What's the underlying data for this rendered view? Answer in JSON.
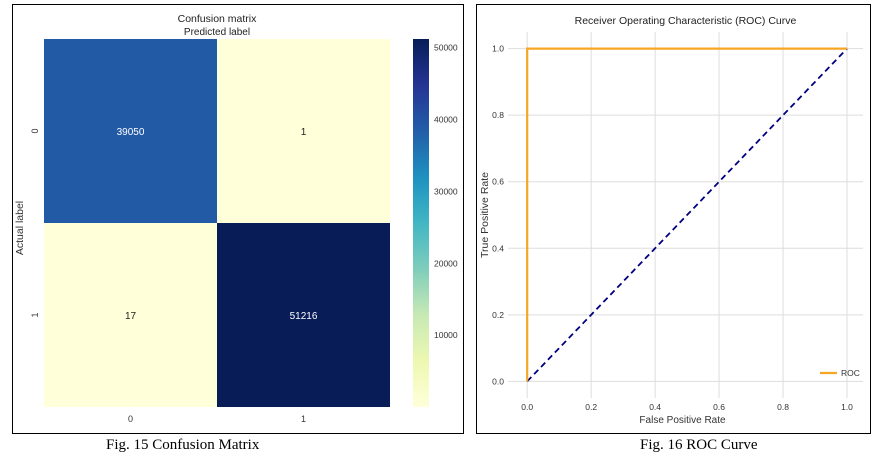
{
  "chart_data": [
    {
      "type": "heatmap",
      "title": "Confusion matrix",
      "subtitle": "Predicted label",
      "ylabel": "Actual label",
      "x_ticks": [
        "0",
        "1"
      ],
      "y_ticks": [
        "0",
        "1"
      ],
      "matrix": [
        [
          39050,
          1
        ],
        [
          17,
          51216
        ]
      ],
      "colormap": "YlGnBu",
      "colorbar_range": [
        0,
        51216
      ],
      "colorbar_ticks": [
        10000,
        20000,
        30000,
        40000,
        50000
      ],
      "grid": false
    },
    {
      "type": "line",
      "title": "Receiver Operating Characteristic (ROC) Curve",
      "xlabel": "False Positive Rate",
      "ylabel": "True Positive Rate",
      "xlim": [
        -0.06,
        1.05
      ],
      "ylim": [
        -0.05,
        1.05
      ],
      "x_ticks": [
        0.0,
        0.2,
        0.4,
        0.6,
        0.8,
        1.0
      ],
      "y_ticks": [
        0.0,
        0.2,
        0.4,
        0.6,
        0.8,
        1.0
      ],
      "grid": true,
      "legend_position": "bottom-right",
      "series": [
        {
          "name": "ROC",
          "x": [
            0.0,
            0.0,
            1.0
          ],
          "y": [
            0.0,
            1.0,
            1.0
          ],
          "color": "#f5a623",
          "style": "solid"
        },
        {
          "x": [
            0.0,
            1.0
          ],
          "y": [
            0.0,
            1.0
          ],
          "color": "#000080",
          "style": "dashed"
        }
      ]
    }
  ],
  "captions": {
    "cm": "Fig. 15 Confusion Matrix",
    "roc": "Fig. 16 ROC Curve"
  },
  "colors": {
    "cm_low": "#ffffd9",
    "cm_high": "#081d58",
    "roc_curve": "#f5a623",
    "diagonal": "#000080"
  }
}
